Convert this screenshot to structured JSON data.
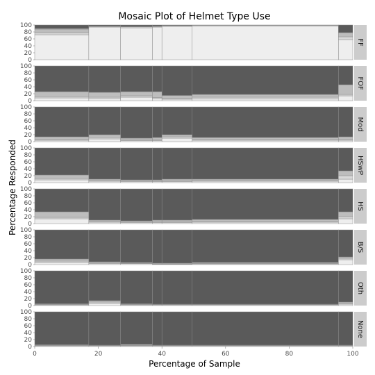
{
  "chart_data": {
    "type": "mosaic",
    "title": "Mosaic Plot of Helmet Type Use",
    "xlabel": "Percentage of Sample",
    "ylabel": "Percentage Responded",
    "xlim": [
      0,
      100
    ],
    "ylim": [
      0,
      100
    ],
    "x_ticks": [
      "0",
      "20",
      "40",
      "60",
      "80",
      "100"
    ],
    "y_ticks": [
      "0",
      "20",
      "40",
      "60",
      "80",
      "100"
    ],
    "grid": true,
    "facet_labels": [
      "FF",
      "FOF",
      "Mod",
      "HSwP",
      "HS",
      "B/S",
      "Oth",
      "None"
    ],
    "segment_boundaries": [
      0,
      17,
      27,
      37,
      40,
      49.5,
      95.5,
      100
    ],
    "response_colors": [
      "#eeeeee",
      "#d9d9d9",
      "#bdbdbd",
      "#9e9e9e",
      "#5a5a5a"
    ],
    "facets": [
      {
        "label": "FF",
        "stacks": [
          [
            [
              0,
              72
            ],
            [
              72,
              78
            ],
            [
              78,
              88
            ],
            [
              88,
              90
            ],
            [
              90,
              100
            ]
          ],
          [
            [
              0,
              94
            ],
            [
              94,
              96
            ],
            [
              96,
              100
            ]
          ],
          [
            [
              0,
              92
            ],
            [
              92,
              95
            ],
            [
              95,
              100
            ]
          ],
          [
            [
              0,
              94
            ],
            [
              94,
              96
            ],
            [
              96,
              100
            ]
          ],
          [
            [
              0,
              96
            ],
            [
              96,
              98
            ],
            [
              98,
              100
            ]
          ],
          [
            [
              0,
              97
            ],
            [
              97,
              99
            ],
            [
              99,
              100
            ]
          ],
          [
            [
              0,
              58
            ],
            [
              58,
              66
            ],
            [
              66,
              78
            ],
            [
              78,
              100
            ]
          ]
        ]
      },
      {
        "label": "FOF",
        "stacks": [
          [
            [
              0,
              8
            ],
            [
              8,
              12
            ],
            [
              12,
              26
            ],
            [
              26,
              100
            ]
          ],
          [
            [
              0,
              6
            ],
            [
              6,
              10
            ],
            [
              10,
              24
            ],
            [
              24,
              100
            ]
          ],
          [
            [
              0,
              10
            ],
            [
              10,
              14
            ],
            [
              14,
              26
            ],
            [
              26,
              100
            ]
          ],
          [
            [
              0,
              6
            ],
            [
              6,
              9
            ],
            [
              9,
              26
            ],
            [
              26,
              100
            ]
          ],
          [
            [
              0,
              4
            ],
            [
              4,
              7
            ],
            [
              7,
              15
            ],
            [
              15,
              100
            ]
          ],
          [
            [
              0,
              5
            ],
            [
              5,
              10
            ],
            [
              10,
              18
            ],
            [
              18,
              100
            ]
          ],
          [
            [
              0,
              14
            ],
            [
              14,
              18
            ],
            [
              18,
              46
            ],
            [
              46,
              100
            ]
          ]
        ]
      },
      {
        "label": "Mod",
        "stacks": [
          [
            [
              0,
              4
            ],
            [
              4,
              6
            ],
            [
              6,
              14
            ],
            [
              14,
              100
            ]
          ],
          [
            [
              0,
              8
            ],
            [
              8,
              12
            ],
            [
              12,
              20
            ],
            [
              20,
              100
            ]
          ],
          [
            [
              0,
              3
            ],
            [
              3,
              5
            ],
            [
              5,
              10
            ],
            [
              10,
              100
            ]
          ],
          [
            [
              0,
              3
            ],
            [
              3,
              5
            ],
            [
              5,
              12
            ],
            [
              12,
              100
            ]
          ],
          [
            [
              0,
              10
            ],
            [
              10,
              14
            ],
            [
              14,
              20
            ],
            [
              20,
              100
            ]
          ],
          [
            [
              0,
              4
            ],
            [
              4,
              6
            ],
            [
              6,
              12
            ],
            [
              12,
              100
            ]
          ],
          [
            [
              0,
              4
            ],
            [
              4,
              6
            ],
            [
              6,
              14
            ],
            [
              14,
              100
            ]
          ]
        ]
      },
      {
        "label": "HSwP",
        "stacks": [
          [
            [
              0,
              8
            ],
            [
              8,
              12
            ],
            [
              12,
              22
            ],
            [
              22,
              100
            ]
          ],
          [
            [
              0,
              4
            ],
            [
              4,
              6
            ],
            [
              6,
              10
            ],
            [
              10,
              100
            ]
          ],
          [
            [
              0,
              3
            ],
            [
              3,
              5
            ],
            [
              5,
              8
            ],
            [
              8,
              100
            ]
          ],
          [
            [
              0,
              3
            ],
            [
              3,
              5
            ],
            [
              5,
              8
            ],
            [
              8,
              100
            ]
          ],
          [
            [
              0,
              3
            ],
            [
              3,
              5
            ],
            [
              5,
              10
            ],
            [
              10,
              100
            ]
          ],
          [
            [
              0,
              4
            ],
            [
              4,
              6
            ],
            [
              6,
              10
            ],
            [
              10,
              100
            ]
          ],
          [
            [
              0,
              10
            ],
            [
              10,
              20
            ],
            [
              20,
              34
            ],
            [
              34,
              100
            ]
          ]
        ]
      },
      {
        "label": "HS",
        "stacks": [
          [
            [
              0,
              14
            ],
            [
              14,
              18
            ],
            [
              18,
              34
            ],
            [
              34,
              100
            ]
          ],
          [
            [
              0,
              4
            ],
            [
              4,
              6
            ],
            [
              6,
              10
            ],
            [
              10,
              100
            ]
          ],
          [
            [
              0,
              3
            ],
            [
              3,
              5
            ],
            [
              5,
              8
            ],
            [
              8,
              100
            ]
          ],
          [
            [
              0,
              3
            ],
            [
              3,
              5
            ],
            [
              5,
              10
            ],
            [
              10,
              100
            ]
          ],
          [
            [
              0,
              3
            ],
            [
              3,
              5
            ],
            [
              5,
              10
            ],
            [
              10,
              100
            ]
          ],
          [
            [
              0,
              4
            ],
            [
              4,
              6
            ],
            [
              6,
              12
            ],
            [
              12,
              100
            ]
          ],
          [
            [
              0,
              14
            ],
            [
              14,
              20
            ],
            [
              20,
              34
            ],
            [
              34,
              100
            ]
          ]
        ]
      },
      {
        "label": "B/S",
        "stacks": [
          [
            [
              0,
              6
            ],
            [
              6,
              10
            ],
            [
              10,
              16
            ],
            [
              16,
              100
            ]
          ],
          [
            [
              0,
              3
            ],
            [
              3,
              5
            ],
            [
              5,
              8
            ],
            [
              8,
              100
            ]
          ],
          [
            [
              0,
              3
            ],
            [
              3,
              4
            ],
            [
              4,
              6
            ],
            [
              6,
              100
            ]
          ],
          [
            [
              0,
              1
            ],
            [
              1,
              2
            ],
            [
              2,
              4
            ],
            [
              4,
              100
            ]
          ],
          [
            [
              0,
              1
            ],
            [
              1,
              2
            ],
            [
              2,
              4
            ],
            [
              4,
              100
            ]
          ],
          [
            [
              0,
              2
            ],
            [
              2,
              3
            ],
            [
              3,
              6
            ],
            [
              6,
              100
            ]
          ],
          [
            [
              0,
              14
            ],
            [
              14,
              18
            ],
            [
              18,
              22
            ],
            [
              22,
              100
            ]
          ]
        ]
      },
      {
        "label": "Oth",
        "stacks": [
          [
            [
              0,
              2
            ],
            [
              2,
              3
            ],
            [
              3,
              5
            ],
            [
              5,
              100
            ]
          ],
          [
            [
              0,
              6
            ],
            [
              6,
              10
            ],
            [
              10,
              14
            ],
            [
              14,
              100
            ]
          ],
          [
            [
              0,
              2
            ],
            [
              2,
              3
            ],
            [
              3,
              5
            ],
            [
              5,
              100
            ]
          ],
          [
            [
              0,
              2
            ],
            [
              2,
              3
            ],
            [
              3,
              4
            ],
            [
              4,
              100
            ]
          ],
          [
            [
              0,
              2
            ],
            [
              2,
              3
            ],
            [
              3,
              4
            ],
            [
              4,
              100
            ]
          ],
          [
            [
              0,
              2
            ],
            [
              2,
              3
            ],
            [
              3,
              4
            ],
            [
              4,
              100
            ]
          ],
          [
            [
              0,
              4
            ],
            [
              4,
              6
            ],
            [
              6,
              10
            ],
            [
              10,
              100
            ]
          ]
        ]
      },
      {
        "label": "None",
        "stacks": [
          [
            [
              0,
              2
            ],
            [
              2,
              3
            ],
            [
              3,
              5
            ],
            [
              5,
              100
            ]
          ],
          [
            [
              0,
              2
            ],
            [
              2,
              3
            ],
            [
              3,
              4
            ],
            [
              4,
              100
            ]
          ],
          [
            [
              0,
              2
            ],
            [
              2,
              3
            ],
            [
              3,
              6
            ],
            [
              6,
              100
            ]
          ],
          [
            [
              0,
              2
            ],
            [
              2,
              3
            ],
            [
              3,
              4
            ],
            [
              4,
              100
            ]
          ],
          [
            [
              0,
              2
            ],
            [
              2,
              3
            ],
            [
              3,
              4
            ],
            [
              4,
              100
            ]
          ],
          [
            [
              0,
              2
            ],
            [
              2,
              3
            ],
            [
              3,
              4
            ],
            [
              4,
              100
            ]
          ],
          [
            [
              0,
              2
            ],
            [
              2,
              3
            ],
            [
              3,
              4
            ],
            [
              4,
              100
            ]
          ]
        ]
      }
    ]
  }
}
